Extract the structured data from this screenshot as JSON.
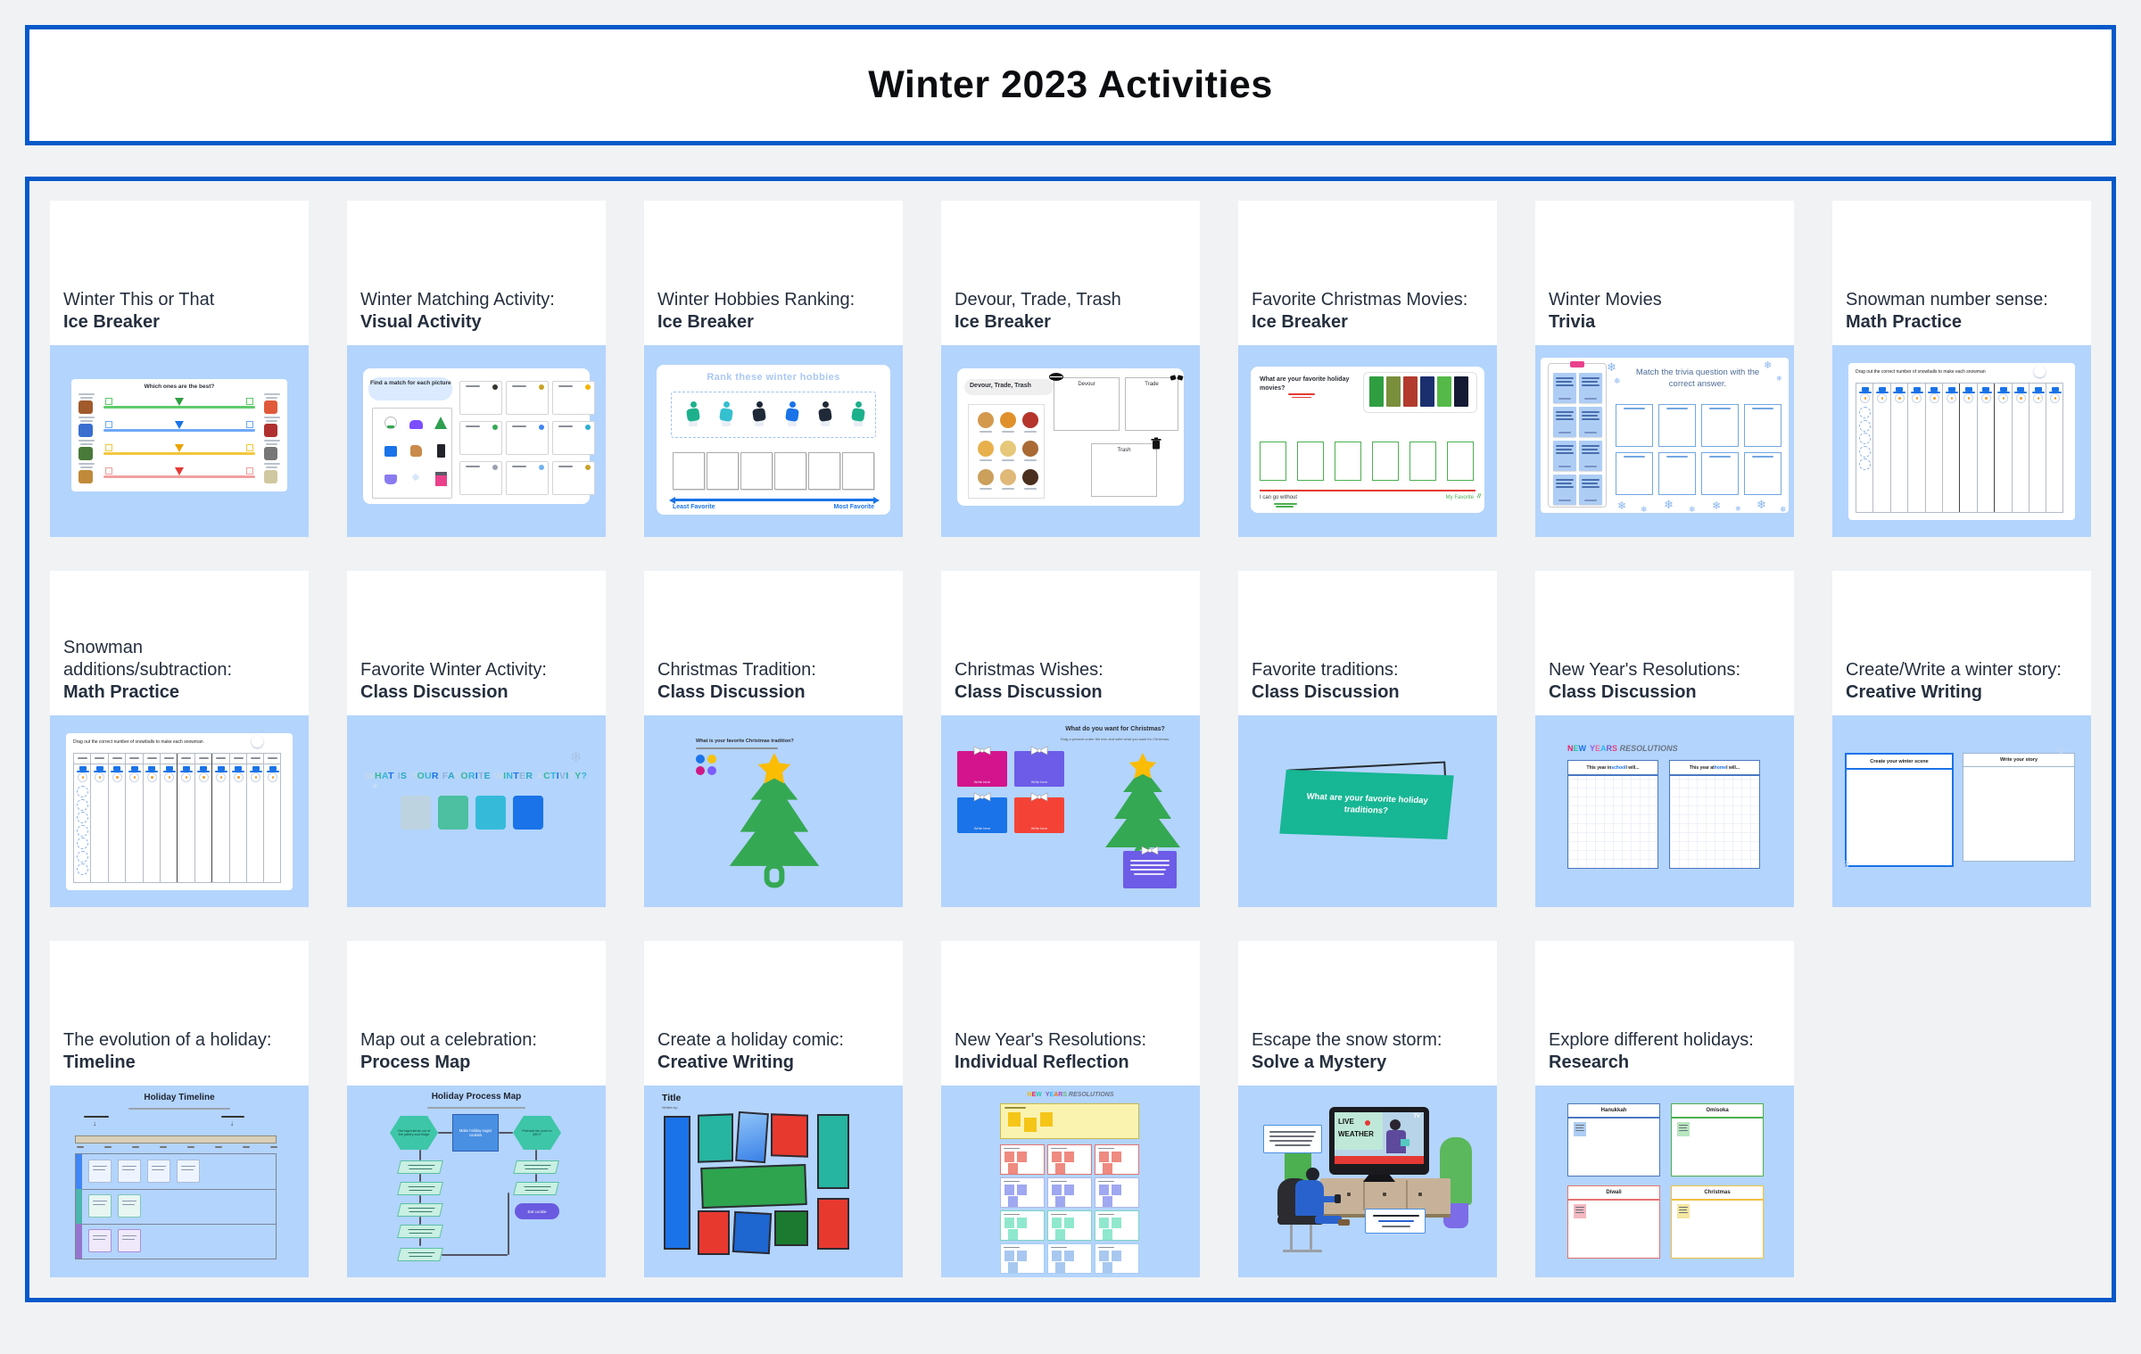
{
  "page_title": "Winter 2023 Activities",
  "colors": {
    "border_blue": "#0659c9",
    "thumb_blue": "#b3d4fc",
    "page_bg": "#f0f2f4",
    "title_text": "#252f3e",
    "accent_blue": "#1a73e8",
    "teal": "#17b694",
    "green": "#34a853",
    "yellow": "#fbbc04",
    "red": "#e53935"
  },
  "rows": [
    {
      "cards": [
        {
          "title": "Winter This or That",
          "subtitle": "Ice Breaker",
          "thumb": {
            "type": "sliders",
            "heading": "Which ones are the best?"
          }
        },
        {
          "title": "Winter Matching Activity:",
          "subtitle": "Visual Activity",
          "thumb": {
            "type": "matching",
            "heading": "Find a match for each picture"
          }
        },
        {
          "title": "Winter Hobbies Ranking:",
          "subtitle": "Ice Breaker",
          "thumb": {
            "type": "ranking",
            "heading": "Rank these winter hobbies",
            "least": "Least Favorite",
            "most": "Most Favorite"
          }
        },
        {
          "title": "Devour, Trade, Trash",
          "subtitle": "Ice Breaker",
          "thumb": {
            "type": "devour",
            "heading": "Devour, Trade, Trash",
            "box1": "Devour",
            "box2": "Trade",
            "box3": "Trash"
          }
        },
        {
          "title": "Favorite Christmas Movies:",
          "subtitle": "Ice Breaker",
          "thumb": {
            "type": "movies",
            "heading": "What are your favorite holiday movies?",
            "left": "I can go without",
            "right": "My Favorite"
          }
        },
        {
          "title": "Winter Movies",
          "subtitle": "Trivia",
          "thumb": {
            "type": "trivia",
            "heading": "Match the trivia question with the correct answer."
          }
        },
        {
          "title": "Snowman number sense:",
          "subtitle": "Math Practice",
          "thumb": {
            "type": "snowmen",
            "heading": "Drag out the correct number of snowballs to make each snowman",
            "header": false
          }
        }
      ]
    },
    {
      "cards": [
        {
          "title": "Snowman additions/subtraction:",
          "subtitle": "Math Practice",
          "thumb": {
            "type": "snowmen",
            "heading": "Drag out the correct number of snowballs to make each snowman",
            "header": true
          }
        },
        {
          "title": "Favorite Winter Activity:",
          "subtitle": "Class Discussion",
          "thumb": {
            "type": "activityq",
            "heading": "WHAT IS YOUR FAVORITE WINTER ACTIVITY?"
          }
        },
        {
          "title": "Christmas Tradition:",
          "subtitle": "Class Discussion",
          "thumb": {
            "type": "tradition",
            "heading": "What is your favorite Christmas tradition?"
          }
        },
        {
          "title": "Christmas Wishes:",
          "subtitle": "Class Discussion",
          "thumb": {
            "type": "wishes",
            "heading": "What do you want for Christmas?",
            "sub": "Drag a present under the tree and write what you want for Christmas.",
            "gift_label": "Write here"
          }
        },
        {
          "title": "Favorite traditions:",
          "subtitle": "Class Discussion",
          "thumb": {
            "type": "banner",
            "heading": "What are your favorite holiday traditions?"
          }
        },
        {
          "title": "New Year's Resolutions:",
          "subtitle": "Class Discussion",
          "thumb": {
            "type": "nyr2",
            "title1": "NEW YEARS",
            "title2": "RESOLUTIONS",
            "col1_pre": "This year in ",
            "col1_hl": "school",
            "col1_post": " I will...",
            "col2_pre": "This year at ",
            "col2_hl": "home",
            "col2_post": " I will..."
          }
        },
        {
          "title": "Create/Write a winter story:",
          "subtitle": "Creative Writing",
          "thumb": {
            "type": "story",
            "col1": "Create your winter scene",
            "col2": "Write your story"
          }
        }
      ]
    },
    {
      "cards": [
        {
          "title": "The evolution of a holiday:",
          "subtitle": "Timeline",
          "thumb": {
            "type": "timeline",
            "heading": "Holiday Timeline"
          }
        },
        {
          "title": "Map out a celebration:",
          "subtitle": "Process Map",
          "thumb": {
            "type": "process",
            "heading": "Holiday Process Map",
            "hex1": "Get ingredients out of the pantry and fridge",
            "rect": "Make holiday sugar cookies",
            "hex2": "Preheat the oven to 350 F",
            "end": "Eat cookie"
          }
        },
        {
          "title": "Create a holiday comic:",
          "subtitle": "Creative Writing",
          "thumb": {
            "type": "comic",
            "heading": "Title",
            "sub": "Written by:"
          }
        },
        {
          "title": "New Year's Resolutions:",
          "subtitle": "Individual Reflection",
          "thumb": {
            "type": "nyr3",
            "title1": "NEW YEARS",
            "title2": "RESOLUTIONS"
          }
        },
        {
          "title": "Escape the snow storm:",
          "subtitle": "Solve a Mystery",
          "thumb": {
            "type": "storm",
            "live": "LIVE",
            "weather": "WEATHER",
            "tv": "TV"
          }
        },
        {
          "title": "Explore different holidays:",
          "subtitle": "Research",
          "thumb": {
            "type": "holidays",
            "boxes": [
              "Hanukkah",
              "Omisoka",
              "Diwali",
              "Christmas"
            ]
          }
        }
      ]
    }
  ]
}
